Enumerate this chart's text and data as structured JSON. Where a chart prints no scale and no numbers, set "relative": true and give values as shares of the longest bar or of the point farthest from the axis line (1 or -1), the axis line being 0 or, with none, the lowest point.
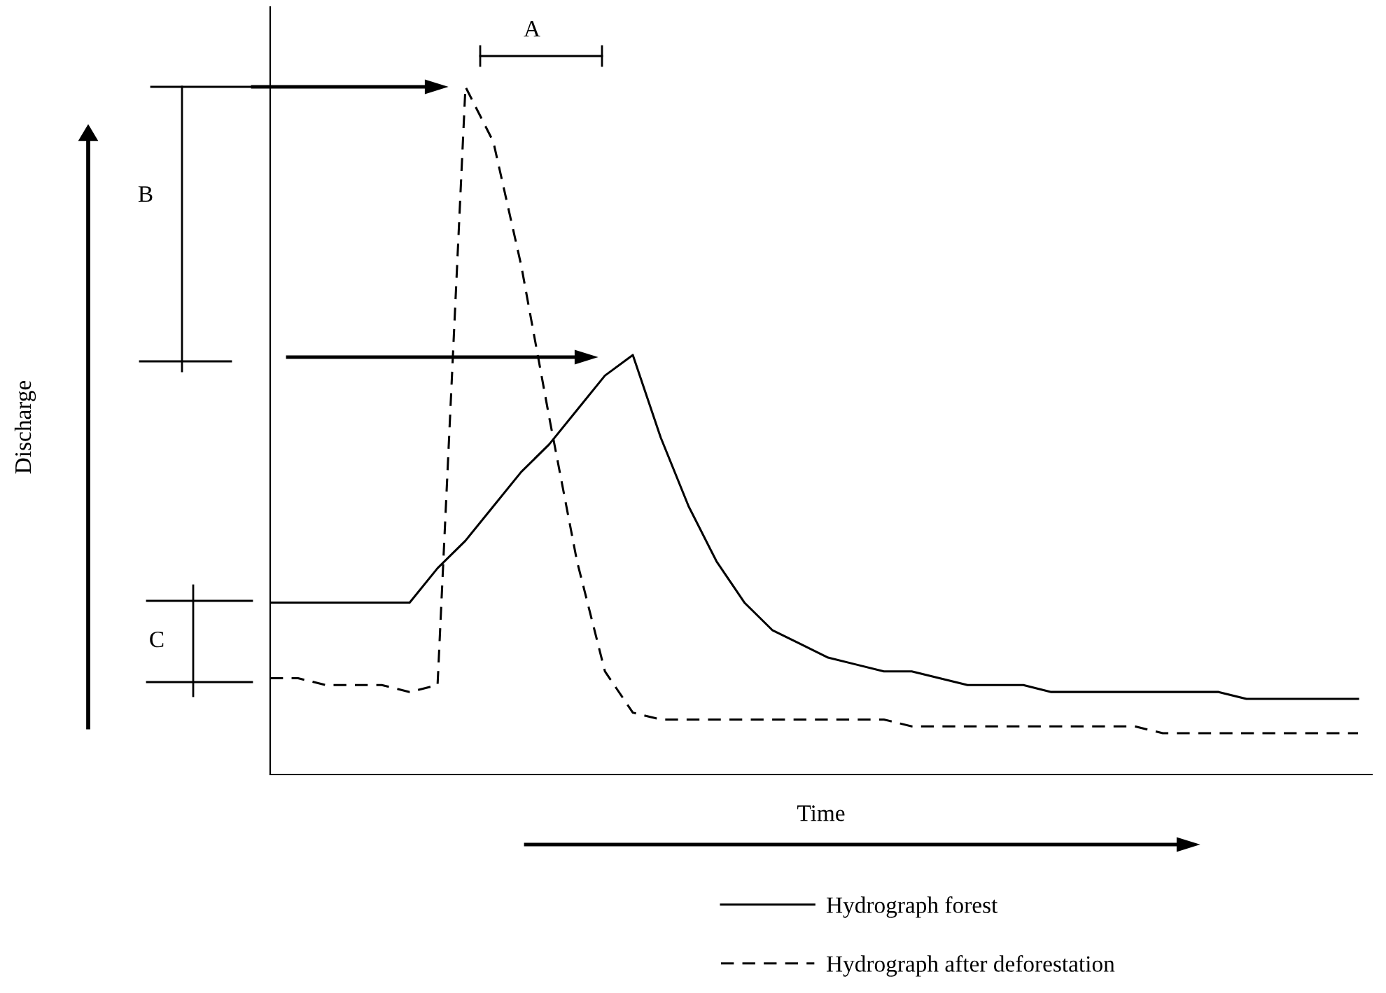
{
  "chart_data": {
    "type": "line",
    "relative": true,
    "xlabel": "Time",
    "categories": [
      null,
      null,
      null,
      null,
      null,
      null,
      null,
      null,
      null,
      null,
      null,
      null,
      null,
      null,
      null,
      null,
      null,
      null,
      null,
      null,
      null,
      null,
      null,
      null,
      null,
      null,
      null,
      null,
      null,
      null,
      null,
      null,
      null,
      null,
      null,
      null,
      null,
      null,
      null,
      null
    ],
    "series": [
      {
        "name": "Hydrograph forest",
        "color": "#000000",
        "line_style": "solid",
        "values": [
          0.25,
          0.25,
          0.25,
          0.25,
          0.25,
          0.25,
          0.3,
          0.34,
          0.39,
          0.44,
          0.48,
          0.53,
          0.58,
          0.61,
          0.49,
          0.39,
          0.31,
          0.25,
          0.21,
          0.19,
          0.17,
          0.16,
          0.15,
          0.15,
          0.14,
          0.13,
          0.13,
          0.13,
          0.12,
          0.12,
          0.12,
          0.12,
          0.12,
          0.12,
          0.12,
          0.11,
          0.11,
          0.11,
          0.11,
          0.11
        ]
      },
      {
        "name": "Hydrograph after deforestation",
        "color": "#000000",
        "line_style": "dashed",
        "values": [
          0.14,
          0.14,
          0.13,
          0.13,
          0.13,
          0.12,
          0.13,
          1.0,
          0.92,
          0.74,
          0.52,
          0.31,
          0.15,
          0.09,
          0.08,
          0.08,
          0.08,
          0.08,
          0.08,
          0.08,
          0.08,
          0.08,
          0.08,
          0.07,
          0.07,
          0.07,
          0.07,
          0.07,
          0.07,
          0.07,
          0.07,
          0.07,
          0.06,
          0.06,
          0.06,
          0.06,
          0.06,
          0.06,
          0.06,
          0.06
        ]
      }
    ],
    "annotations": [
      "A",
      "B",
      "C",
      "Discharge"
    ],
    "legend": "bottom",
    "grid": false,
    "marker": "none"
  }
}
